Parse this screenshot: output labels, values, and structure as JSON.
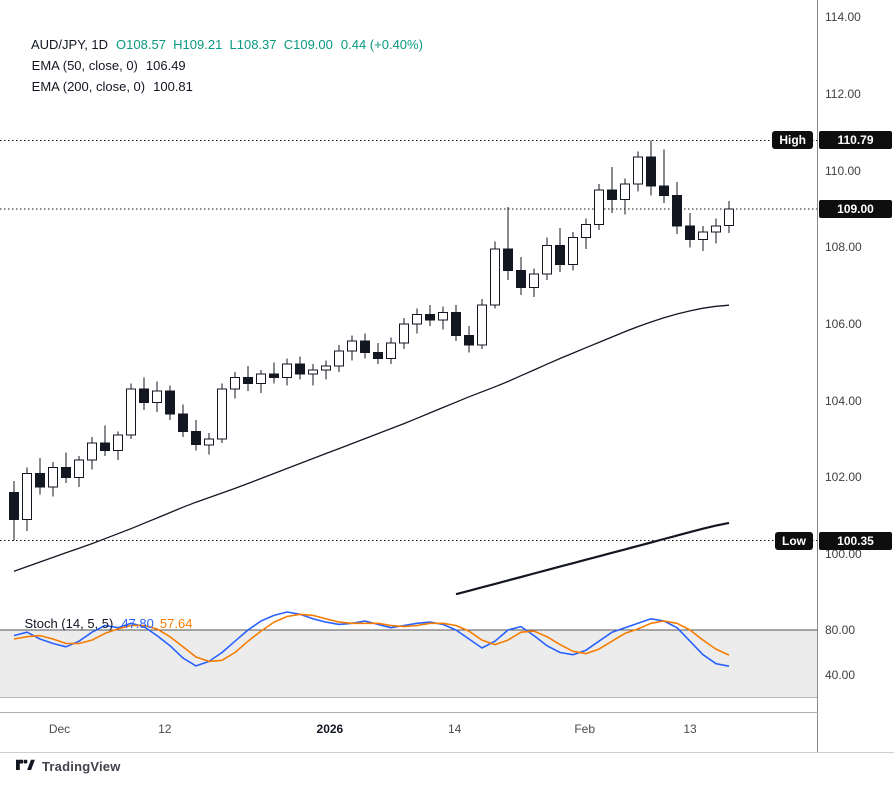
{
  "legend": {
    "symbol": "AUD/JPY, 1D",
    "ohlc": "O108.57  H109.21  L108.37  C109.00",
    "change": "0.44 (+0.40%)",
    "ema50_label": "EMA (50, close, 0)",
    "ema50_value": "106.49",
    "ema200_label": "EMA (200, close, 0)",
    "ema200_value": "100.81"
  },
  "stoch_legend": {
    "label": "Stoch (14, 5, 5)",
    "k_value": "47.80",
    "d_value": "57.64"
  },
  "branding": {
    "logo_text": "TradingView"
  },
  "colors": {
    "up_text": "#089981",
    "stoch_k": "#2962FF",
    "stoch_d": "#F57C00",
    "candle": "#131722",
    "badge_bg": "#0e0e0e"
  },
  "time_axis": [
    {
      "label": "Dec",
      "index": 3.5
    },
    {
      "label": "12",
      "index": 11.6
    },
    {
      "label": "2026",
      "index": 24.3,
      "bold": true
    },
    {
      "label": "14",
      "index": 33.9
    },
    {
      "label": "Feb",
      "index": 43.9
    },
    {
      "label": "13",
      "index": 52.0
    }
  ],
  "chart_data": [
    {
      "type": "candlestick",
      "title": "AUD/JPY, 1D",
      "symbol": "AUD/JPY",
      "timeframe": "1D",
      "ohlc_current": {
        "open": 108.57,
        "high": 109.21,
        "low": 108.37,
        "close": 109.0,
        "change": 0.44,
        "change_pct": "+0.40%"
      },
      "y_axis": {
        "ticks": [
          114,
          112,
          110,
          108,
          106,
          104,
          102,
          100
        ],
        "range": [
          98.8,
          114.45
        ]
      },
      "price_lines": [
        {
          "label": "High",
          "value": 110.79
        },
        {
          "label": "",
          "value": 109.0
        },
        {
          "label": "Low",
          "value": 100.35
        }
      ],
      "candles": [
        [
          101.6,
          101.9,
          100.35,
          100.9
        ],
        [
          100.9,
          102.25,
          100.6,
          102.1
        ],
        [
          102.1,
          102.5,
          101.55,
          101.75
        ],
        [
          101.75,
          102.4,
          101.5,
          102.25
        ],
        [
          102.25,
          102.65,
          101.85,
          102.0
        ],
        [
          102.0,
          102.55,
          101.75,
          102.45
        ],
        [
          102.45,
          103.05,
          102.2,
          102.9
        ],
        [
          102.9,
          103.35,
          102.55,
          102.7
        ],
        [
          102.7,
          103.2,
          102.45,
          103.1
        ],
        [
          103.1,
          104.45,
          103.0,
          104.3
        ],
        [
          104.3,
          104.6,
          103.75,
          103.95
        ],
        [
          103.95,
          104.5,
          103.7,
          104.25
        ],
        [
          104.25,
          104.4,
          103.5,
          103.65
        ],
        [
          103.65,
          103.9,
          103.05,
          103.2
        ],
        [
          103.2,
          103.5,
          102.7,
          102.85
        ],
        [
          102.85,
          103.15,
          102.6,
          103.0
        ],
        [
          103.0,
          104.45,
          102.9,
          104.3
        ],
        [
          104.3,
          104.75,
          104.05,
          104.6
        ],
        [
          104.6,
          104.9,
          104.25,
          104.45
        ],
        [
          104.45,
          104.8,
          104.2,
          104.7
        ],
        [
          104.7,
          105.0,
          104.45,
          104.6
        ],
        [
          104.6,
          105.1,
          104.4,
          104.95
        ],
        [
          104.95,
          105.15,
          104.55,
          104.7
        ],
        [
          104.7,
          104.95,
          104.4,
          104.8
        ],
        [
          104.8,
          105.05,
          104.55,
          104.9
        ],
        [
          104.9,
          105.45,
          104.75,
          105.3
        ],
        [
          105.3,
          105.7,
          105.05,
          105.55
        ],
        [
          105.55,
          105.75,
          105.1,
          105.25
        ],
        [
          105.25,
          105.5,
          104.95,
          105.1
        ],
        [
          105.1,
          105.65,
          104.95,
          105.5
        ],
        [
          105.5,
          106.15,
          105.35,
          106.0
        ],
        [
          106.0,
          106.4,
          105.75,
          106.25
        ],
        [
          106.25,
          106.5,
          105.95,
          106.1
        ],
        [
          106.1,
          106.45,
          105.85,
          106.3
        ],
        [
          106.3,
          106.5,
          105.55,
          105.7
        ],
        [
          105.7,
          105.95,
          105.25,
          105.45
        ],
        [
          105.45,
          106.65,
          105.35,
          106.5
        ],
        [
          106.5,
          108.15,
          106.4,
          107.95
        ],
        [
          107.95,
          109.05,
          107.15,
          107.4
        ],
        [
          107.4,
          107.75,
          106.75,
          106.95
        ],
        [
          106.95,
          107.45,
          106.7,
          107.3
        ],
        [
          107.3,
          108.25,
          107.15,
          108.05
        ],
        [
          108.05,
          108.5,
          107.35,
          107.55
        ],
        [
          107.55,
          108.4,
          107.4,
          108.25
        ],
        [
          108.25,
          108.75,
          107.95,
          108.6
        ],
        [
          108.6,
          109.65,
          108.45,
          109.5
        ],
        [
          109.5,
          110.1,
          108.9,
          109.25
        ],
        [
          109.25,
          109.8,
          108.85,
          109.65
        ],
        [
          109.65,
          110.5,
          109.45,
          110.35
        ],
        [
          110.35,
          110.79,
          109.35,
          109.6
        ],
        [
          109.6,
          110.55,
          109.15,
          109.35
        ],
        [
          109.35,
          109.7,
          108.35,
          108.55
        ],
        [
          108.55,
          108.9,
          108.0,
          108.2
        ],
        [
          108.2,
          108.55,
          107.9,
          108.4
        ],
        [
          108.4,
          108.75,
          108.1,
          108.56
        ],
        [
          108.57,
          109.21,
          108.37,
          109.0
        ]
      ],
      "overlays": [
        {
          "name": "EMA (50, close, 0)",
          "current": 106.49,
          "color": "#131722",
          "start_index": 0,
          "values": [
            99.55,
            99.67,
            99.79,
            99.91,
            100.03,
            100.15,
            100.27,
            100.4,
            100.53,
            100.66,
            100.8,
            100.94,
            101.08,
            101.22,
            101.35,
            101.47,
            101.59,
            101.71,
            101.84,
            101.97,
            102.1,
            102.23,
            102.36,
            102.49,
            102.62,
            102.75,
            102.88,
            103.01,
            103.14,
            103.27,
            103.4,
            103.54,
            103.68,
            103.82,
            103.96,
            104.1,
            104.23,
            104.36,
            104.5,
            104.65,
            104.8,
            104.95,
            105.1,
            105.24,
            105.38,
            105.52,
            105.66,
            105.8,
            105.93,
            106.05,
            106.16,
            106.26,
            106.34,
            106.41,
            106.46,
            106.49
          ]
        },
        {
          "name": "EMA (200, close, 0)",
          "current": 100.81,
          "color": "#131722",
          "start_index": 34,
          "values": [
            98.95,
            99.04,
            99.13,
            99.22,
            99.31,
            99.4,
            99.49,
            99.58,
            99.67,
            99.76,
            99.85,
            99.94,
            100.03,
            100.12,
            100.21,
            100.3,
            100.39,
            100.48,
            100.57,
            100.66,
            100.74,
            100.81
          ]
        }
      ]
    },
    {
      "type": "line",
      "title": "Stoch (14, 5, 5)",
      "y_axis": {
        "ticks": [
          80,
          40
        ],
        "range": [
          7,
          106.7
        ]
      },
      "bands": {
        "upper": 80,
        "lower": 20
      },
      "series": [
        {
          "name": "%K",
          "color": "#2962FF",
          "current": 47.8,
          "values": [
            75,
            78,
            72,
            68,
            65,
            70,
            78,
            84,
            82,
            86,
            83,
            75,
            66,
            55,
            48,
            52,
            60,
            70,
            80,
            88,
            93,
            96,
            94,
            90,
            87,
            85,
            86,
            88,
            85,
            82,
            84,
            86,
            87,
            85,
            80,
            72,
            64,
            70,
            80,
            83,
            75,
            66,
            60,
            58,
            62,
            70,
            78,
            82,
            86,
            90,
            88,
            82,
            70,
            58,
            50,
            47.8
          ]
        },
        {
          "name": "%D",
          "color": "#F57C00",
          "current": 57.64,
          "values": [
            72,
            74,
            75,
            72,
            68,
            68,
            71,
            77,
            81,
            84,
            84,
            81,
            74,
            65,
            56,
            52,
            53,
            60,
            70,
            79,
            87,
            92,
            94,
            93,
            90,
            87,
            86,
            86,
            86,
            84,
            83,
            84,
            86,
            86,
            84,
            79,
            71,
            67,
            71,
            78,
            79,
            74,
            67,
            61,
            59,
            63,
            70,
            77,
            81,
            86,
            88,
            86,
            80,
            71,
            63,
            57.64
          ]
        }
      ]
    }
  ]
}
